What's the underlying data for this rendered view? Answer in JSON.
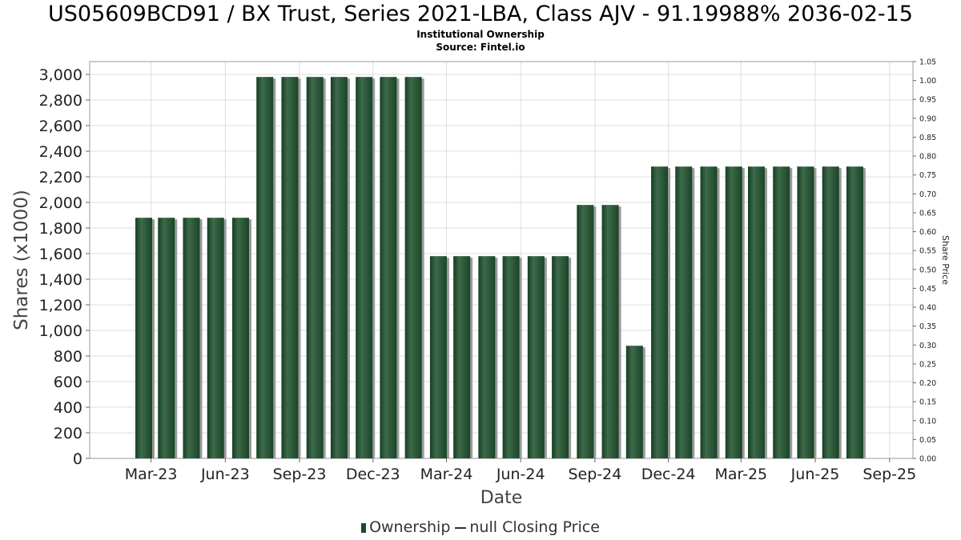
{
  "header": {
    "title": "US05609BCD91 / BX Trust, Series 2021-LBA, Class AJV - 91.19988% 2036-02-15",
    "subtitle1": "Institutional Ownership",
    "subtitle2": "Source: Fintel.io"
  },
  "legend": {
    "ownership_label": "Ownership",
    "price_label": "null Closing Price"
  },
  "colors": {
    "bar": "#1f4a2c",
    "bar_highlight": "#3d6a4a",
    "bar_shadow": "#9a9a9a",
    "grid": "#dddddd",
    "axis": "#666666"
  },
  "chart_data": {
    "type": "bar",
    "title": "US05609BCD91 / BX Trust, Series 2021-LBA, Class AJV - 91.19988% 2036-02-15",
    "xlabel": "Date",
    "ylabel": "Shares (x1000)",
    "y2label": "Share Price",
    "ylim": [
      0,
      3100
    ],
    "y2lim": [
      0,
      1.05
    ],
    "xlim": [
      "2022-12-15",
      "2025-09-30"
    ],
    "grid": true,
    "legend_position": "bottom",
    "x_ticks": [
      {
        "date": "2023-03-01",
        "label": "Mar-23"
      },
      {
        "date": "2023-06-01",
        "label": "Jun-23"
      },
      {
        "date": "2023-09-01",
        "label": "Sep-23"
      },
      {
        "date": "2023-12-01",
        "label": "Dec-23"
      },
      {
        "date": "2024-03-01",
        "label": "Mar-24"
      },
      {
        "date": "2024-06-01",
        "label": "Jun-24"
      },
      {
        "date": "2024-09-01",
        "label": "Sep-24"
      },
      {
        "date": "2024-12-01",
        "label": "Dec-24"
      },
      {
        "date": "2025-03-01",
        "label": "Mar-25"
      },
      {
        "date": "2025-06-01",
        "label": "Jun-25"
      },
      {
        "date": "2025-09-01",
        "label": "Sep-25"
      }
    ],
    "y_ticks": [
      0,
      200,
      400,
      600,
      800,
      1000,
      1200,
      1400,
      1600,
      1800,
      2000,
      2200,
      2400,
      2600,
      2800,
      3000
    ],
    "y_tick_labels": [
      "0",
      "200",
      "400",
      "600",
      "800",
      "1,000",
      "1,200",
      "1,400",
      "1,600",
      "1,800",
      "2,000",
      "2,200",
      "2,400",
      "2,600",
      "2,800",
      "3,000"
    ],
    "y2_ticks": [
      0,
      0.05,
      0.1,
      0.15,
      0.2,
      0.25,
      0.3,
      0.35,
      0.4,
      0.45,
      0.5,
      0.55,
      0.6,
      0.65,
      0.7,
      0.75,
      0.8,
      0.85,
      0.9,
      0.95,
      1.0,
      1.05
    ],
    "y2_tick_labels": [
      "0.00",
      "0.05",
      "0.10",
      "0.15",
      "0.20",
      "0.25",
      "0.30",
      "0.35",
      "0.40",
      "0.45",
      "0.50",
      "0.55",
      "0.60",
      "0.65",
      "0.70",
      "0.75",
      "0.80",
      "0.85",
      "0.90",
      "0.95",
      "1.00",
      "1.05"
    ],
    "series": [
      {
        "name": "Ownership",
        "x": [
          "2023-02-20",
          "2023-03-20",
          "2023-04-20",
          "2023-05-20",
          "2023-06-20",
          "2023-07-20",
          "2023-08-20",
          "2023-09-20",
          "2023-10-20",
          "2023-11-20",
          "2023-12-20",
          "2024-01-20",
          "2024-02-20",
          "2024-03-20",
          "2024-04-20",
          "2024-05-20",
          "2024-06-20",
          "2024-07-20",
          "2024-08-20",
          "2024-09-20",
          "2024-10-20",
          "2024-11-20",
          "2024-12-20",
          "2025-01-20",
          "2025-02-20",
          "2025-03-20",
          "2025-04-20",
          "2025-05-20",
          "2025-06-20",
          "2025-07-20"
        ],
        "values": [
          1880,
          1880,
          1880,
          1880,
          1880,
          2980,
          2980,
          2980,
          2980,
          2980,
          2980,
          2980,
          1580,
          1580,
          1580,
          1580,
          1580,
          1580,
          1980,
          1980,
          880,
          2280,
          2280,
          2280,
          2280,
          2280,
          2280,
          2280,
          2280,
          2280
        ]
      }
    ]
  }
}
